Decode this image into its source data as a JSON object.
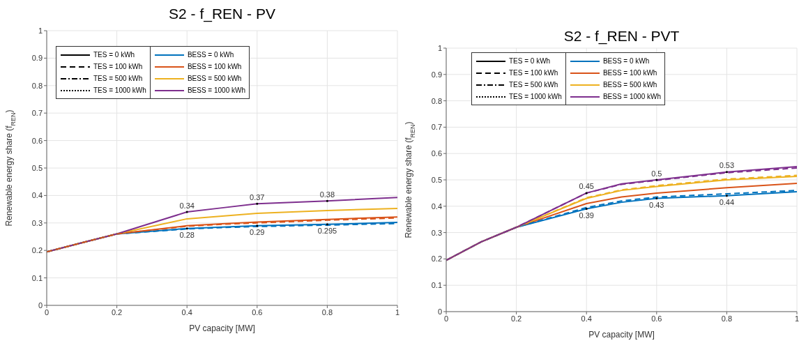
{
  "chart_data": [
    {
      "type": "line",
      "title": "S2 - f_REN - PV",
      "xlabel": "PV capacity [MW]",
      "ylabel": "Renewable energy share (f$_{REN}$)",
      "x": [
        0,
        0.1,
        0.2,
        0.4,
        0.5,
        0.6,
        0.8,
        1
      ],
      "xlim": [
        0,
        1
      ],
      "ylim": [
        0,
        1
      ],
      "xticks": [
        0,
        0.2,
        0.4,
        0.6,
        0.8,
        1
      ],
      "yticks": [
        0,
        0.1,
        0.2,
        0.3,
        0.4,
        0.5,
        0.6,
        0.7,
        0.8,
        0.9,
        1
      ],
      "grid": true,
      "legend": "top left",
      "series": [
        {
          "name": "TES = 0 kWh",
          "color": "#000000",
          "line_style": "solid",
          "values": [
            null,
            null,
            null,
            null,
            null,
            null,
            null,
            null
          ]
        },
        {
          "name": "TES = 100 kWh",
          "color": "#000000",
          "line_style": "dashed",
          "values": [
            null,
            null,
            null,
            null,
            null,
            null,
            null,
            null
          ]
        },
        {
          "name": "TES = 500 kWh",
          "color": "#000000",
          "line_style": "dashdot",
          "values": [
            null,
            null,
            null,
            null,
            null,
            null,
            null,
            null
          ]
        },
        {
          "name": "TES = 1000 kWh",
          "color": "#000000",
          "line_style": "dotted",
          "values": [
            null,
            null,
            null,
            null,
            null,
            null,
            null,
            null
          ]
        },
        {
          "name": "BESS = 0 kWh",
          "color": "#0072bd",
          "line_style": "solid",
          "values": [
            0.195,
            0.228,
            0.26,
            0.28,
            0.285,
            0.29,
            0.295,
            0.302
          ]
        },
        {
          "name": "BESS = 100 kWh",
          "color": "#d95319",
          "line_style": "solid",
          "values": [
            0.195,
            0.228,
            0.26,
            0.29,
            0.297,
            0.303,
            0.313,
            0.322
          ]
        },
        {
          "name": "BESS = 500 kWh",
          "color": "#edb120",
          "line_style": "solid",
          "values": [
            0.195,
            0.228,
            0.26,
            0.315,
            0.325,
            0.335,
            0.345,
            0.353
          ]
        },
        {
          "name": "BESS = 1000 kWh",
          "color": "#7e2f8e",
          "line_style": "solid",
          "values": [
            0.195,
            0.228,
            0.26,
            0.34,
            0.355,
            0.37,
            0.38,
            0.393
          ]
        },
        {
          "color": "#0072bd",
          "line_style": "dashed",
          "values": [
            0.195,
            0.228,
            0.26,
            0.278,
            0.283,
            0.287,
            0.292,
            0.298
          ]
        },
        {
          "color": "#d95319",
          "line_style": "dashed",
          "values": [
            0.195,
            0.228,
            0.26,
            0.288,
            0.295,
            0.3,
            0.31,
            0.318
          ]
        }
      ],
      "annotations": [
        {
          "text": "0.34",
          "x": 0.4,
          "y": 0.34
        },
        {
          "text": "0.37",
          "x": 0.6,
          "y": 0.37
        },
        {
          "text": "0.38",
          "x": 0.8,
          "y": 0.38
        },
        {
          "text": "0.28",
          "x": 0.4,
          "y": 0.28
        },
        {
          "text": "0.29",
          "x": 0.6,
          "y": 0.29
        },
        {
          "text": "0.295",
          "x": 0.8,
          "y": 0.295
        }
      ]
    },
    {
      "type": "line",
      "title": "S2 - f_REN - PVT",
      "xlabel": "PV capacity [MW]",
      "ylabel": "Renewable energy share (f$_{REN}$)",
      "x": [
        0,
        0.1,
        0.2,
        0.4,
        0.5,
        0.6,
        0.8,
        1
      ],
      "xlim": [
        0,
        1
      ],
      "ylim": [
        0,
        1
      ],
      "xticks": [
        0,
        0.2,
        0.4,
        0.6,
        0.8,
        1
      ],
      "yticks": [
        0,
        0.1,
        0.2,
        0.3,
        0.4,
        0.5,
        0.6,
        0.7,
        0.8,
        0.9,
        1
      ],
      "grid": true,
      "legend": "top left",
      "series": [
        {
          "name": "TES = 0 kWh",
          "color": "#000000",
          "line_style": "solid",
          "values": [
            null,
            null,
            null,
            null,
            null,
            null,
            null,
            null
          ]
        },
        {
          "name": "TES = 100 kWh",
          "color": "#000000",
          "line_style": "dashed",
          "values": [
            null,
            null,
            null,
            null,
            null,
            null,
            null,
            null
          ]
        },
        {
          "name": "TES = 500 kWh",
          "color": "#000000",
          "line_style": "dashdot",
          "values": [
            null,
            null,
            null,
            null,
            null,
            null,
            null,
            null
          ]
        },
        {
          "name": "TES = 1000 kWh",
          "color": "#000000",
          "line_style": "dotted",
          "values": [
            null,
            null,
            null,
            null,
            null,
            null,
            null,
            null
          ]
        },
        {
          "name": "BESS = 0 kWh",
          "color": "#0072bd",
          "line_style": "solid",
          "values": [
            0.195,
            0.265,
            0.32,
            0.39,
            0.415,
            0.43,
            0.44,
            0.455
          ]
        },
        {
          "name": "BESS = 100 kWh",
          "color": "#d95319",
          "line_style": "solid",
          "values": [
            0.195,
            0.265,
            0.32,
            0.41,
            0.435,
            0.45,
            0.47,
            0.487
          ]
        },
        {
          "name": "BESS = 500 kWh",
          "color": "#edb120",
          "line_style": "solid",
          "values": [
            0.195,
            0.265,
            0.32,
            0.43,
            0.46,
            0.475,
            0.5,
            0.513
          ]
        },
        {
          "name": "BESS = 1000 kWh",
          "color": "#7e2f8e",
          "line_style": "solid",
          "values": [
            0.195,
            0.265,
            0.32,
            0.45,
            0.485,
            0.5,
            0.53,
            0.55
          ]
        },
        {
          "color": "#0072bd",
          "line_style": "dashed",
          "values": [
            0.195,
            0.265,
            0.32,
            0.395,
            0.42,
            0.435,
            0.447,
            0.46
          ]
        },
        {
          "color": "#edb120",
          "line_style": "dashed",
          "values": [
            0.195,
            0.265,
            0.32,
            0.432,
            0.462,
            0.478,
            0.503,
            0.517
          ]
        },
        {
          "color": "#7e2f8e",
          "line_style": "dashed",
          "values": [
            0.195,
            0.265,
            0.32,
            0.45,
            0.483,
            0.498,
            0.527,
            0.545
          ]
        }
      ],
      "annotations": [
        {
          "text": "0.45",
          "x": 0.4,
          "y": 0.45
        },
        {
          "text": "0.5",
          "x": 0.6,
          "y": 0.5
        },
        {
          "text": "0.53",
          "x": 0.8,
          "y": 0.53
        },
        {
          "text": "0.39",
          "x": 0.4,
          "y": 0.39
        },
        {
          "text": "0.43",
          "x": 0.6,
          "y": 0.43
        },
        {
          "text": "0.44",
          "x": 0.8,
          "y": 0.44
        }
      ]
    }
  ]
}
